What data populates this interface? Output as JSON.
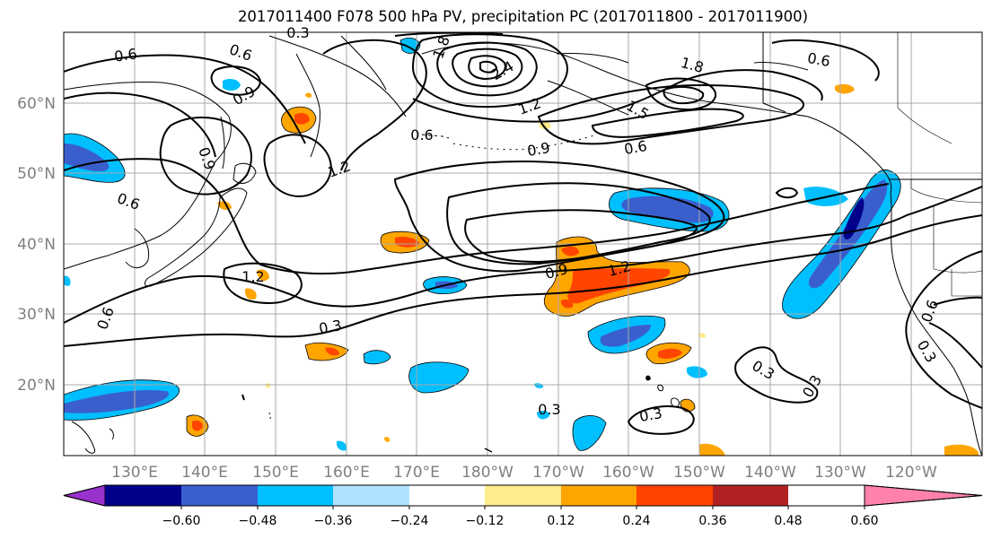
{
  "title": "2017011400 F078 500 hPa PV, precipitation PC (2017011800 - 2017011900)",
  "lat_labels": [
    "60°N",
    "50°N",
    "40°N",
    "30°N",
    "20°N"
  ],
  "lon_labels": [
    "130°E",
    "140°E",
    "150°E",
    "160°E",
    "170°E",
    "180°W",
    "170°W",
    "160°W",
    "150°W",
    "140°W",
    "130°W",
    "120°W"
  ],
  "contour_labels": [
    "0.3",
    "0.6",
    "0.6",
    "0.9",
    "1.8",
    "2.4",
    "1.2",
    "1.8",
    "1.5",
    "0.6",
    "0.9",
    "1.2",
    "0.6",
    "0.6",
    "0.9",
    "0.6",
    "1.2",
    "0.9",
    "1.2",
    "0.3",
    "0.6",
    "0.3",
    "0.3",
    "0.3",
    "0.3",
    "0.6",
    "0.3"
  ],
  "colorbar": {
    "colors": [
      "#9932cc",
      "#00008b",
      "#3a5fcd",
      "#00bfff",
      "#b0e2ff",
      "#ffffff",
      "#ffec8b",
      "#ffa500",
      "#ff4500",
      "#b22222",
      "#ff82ab"
    ],
    "tick_labels": [
      "−0.60",
      "−0.48",
      "−0.36",
      "−0.24",
      "−0.12",
      "0.12",
      "0.24",
      "0.36",
      "0.48",
      "0.60"
    ]
  }
}
